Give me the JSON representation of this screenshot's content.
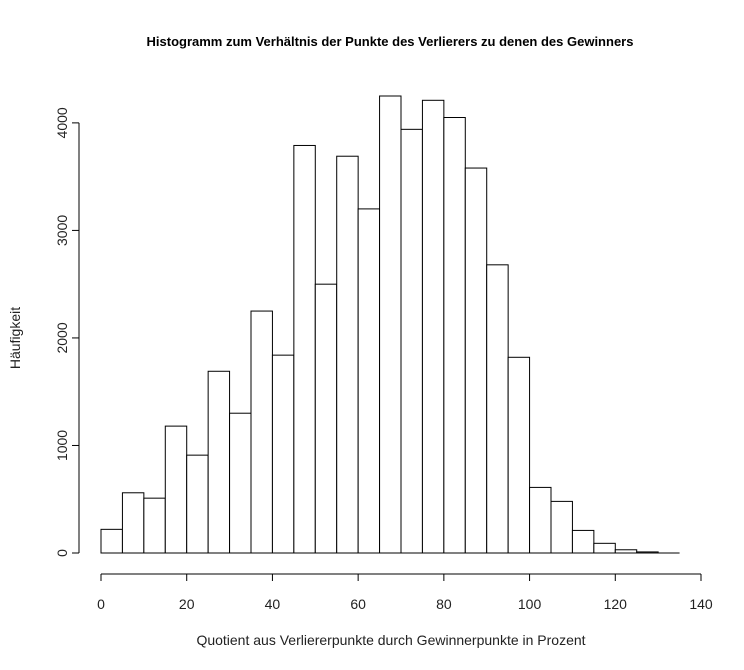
{
  "chart_data": {
    "type": "bar",
    "title": "Histogramm zum Verhältnis der Punkte des Verlierers zu denen des Gewinners",
    "xlabel": "Quotient aus Verliererpunkte durch Gewinnerpunkte in Prozent",
    "ylabel": "Häufigkeit",
    "bin_width": 5,
    "bin_start": 0,
    "values": [
      220,
      560,
      510,
      1180,
      910,
      1690,
      1300,
      2250,
      1840,
      3790,
      2500,
      3690,
      3200,
      4250,
      3940,
      4210,
      4050,
      3580,
      2680,
      1820,
      610,
      480,
      210,
      90,
      30,
      10,
      0
    ],
    "xlim": [
      0,
      140
    ],
    "ylim": [
      0,
      4250
    ],
    "xticks": [
      0,
      20,
      40,
      60,
      80,
      100,
      120,
      140
    ],
    "yticks": [
      0,
      1000,
      2000,
      3000,
      4000
    ],
    "grid": false,
    "legend": "none"
  }
}
